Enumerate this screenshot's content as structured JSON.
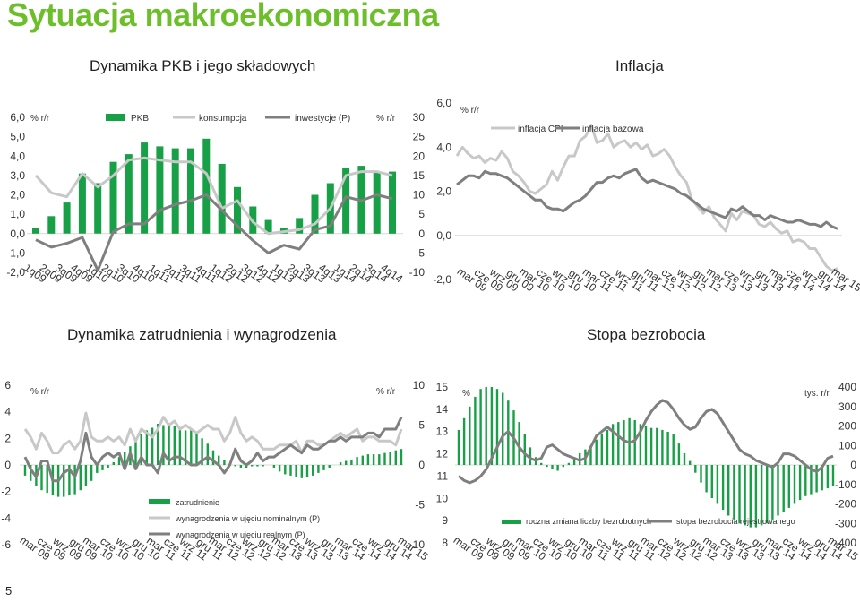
{
  "slide": {
    "title": "Sytuacja makroekonomiczna",
    "page_number": "5",
    "colors": {
      "accent": "#6cbf2a",
      "bar": "#17a046",
      "dark_line": "#7f7f7f",
      "light_line": "#c8c8c8"
    }
  },
  "sections": {
    "gdp": "Dynamika PKB i jego składowych",
    "inflation": "Inflacja",
    "employment": "Dynamika zatrudnienia i wynagrodzenia",
    "unemployment": "Stopa bezrobocia"
  },
  "chart_data": [
    {
      "id": "gdp",
      "type": "bar",
      "title": "Dynamika PKB i jego składowych",
      "left_unit": "% r/r",
      "right_unit": "% r/r",
      "left_ticks": [
        "6,0",
        "5,0",
        "4,0",
        "3,0",
        "2,0",
        "1,0",
        "0,0",
        "-1,0",
        "-2,0"
      ],
      "right_ticks": [
        "30",
        "25",
        "20",
        "15",
        "10",
        "5",
        "0",
        "-5",
        "-10"
      ],
      "ylim": [
        -2,
        6
      ],
      "y2lim": [
        -10,
        30
      ],
      "categories": [
        "1q09",
        "2q09",
        "3q09",
        "4q09",
        "1q10",
        "2q10",
        "3q10",
        "4q10",
        "1q11",
        "2q11",
        "3q11",
        "4q11",
        "1q12",
        "2q12",
        "3q12",
        "4q12",
        "1q13",
        "2q13",
        "3q13",
        "4q13",
        "1q14",
        "2q14",
        "3q14",
        "4q14"
      ],
      "series": [
        {
          "name": "PKB",
          "kind": "bar",
          "axis": "left",
          "color": "#17a046",
          "values": [
            0.3,
            0.9,
            1.6,
            3.1,
            2.6,
            3.7,
            4.1,
            4.7,
            4.5,
            4.4,
            4.4,
            4.9,
            3.6,
            2.4,
            1.4,
            0.7,
            0.3,
            0.8,
            2.0,
            2.6,
            3.4,
            3.5,
            3.2,
            3.2
          ]
        },
        {
          "name": "konsumpcja",
          "kind": "line",
          "axis": "left",
          "color": "#c8c8c8",
          "values": [
            3.0,
            2.1,
            1.9,
            3.1,
            2.4,
            3.0,
            3.8,
            3.9,
            3.8,
            3.7,
            3.7,
            3.1,
            1.3,
            1.7,
            0.6,
            0.0,
            0.1,
            0.2,
            0.5,
            1.3,
            3.0,
            3.2,
            3.2,
            3.0
          ]
        },
        {
          "name": "inwestycje (P)",
          "kind": "line",
          "axis": "right",
          "color": "#7f7f7f",
          "values": [
            -1.6,
            -3.5,
            -2.5,
            -1.0,
            -9.5,
            0.5,
            2.5,
            2.5,
            6.0,
            7.5,
            8.5,
            10.0,
            6.0,
            2.0,
            -1.8,
            -5.0,
            -3.0,
            -4.0,
            1.0,
            2.0,
            9.5,
            8.5,
            10.0,
            9.0
          ]
        }
      ]
    },
    {
      "id": "inflation",
      "type": "line",
      "title": "Inflacja",
      "unit": "% r/r",
      "left_ticks": [
        "6,0",
        "4,0",
        "2,0",
        "0,0",
        "-2,0"
      ],
      "ylim": [
        -2,
        6
      ],
      "tick_labels": [
        "mar 09",
        "cze 09",
        "wrz 09",
        "gru 09",
        "mar 10",
        "cze 10",
        "wrz 10",
        "gru 10",
        "mar 11",
        "cze 11",
        "wrz 11",
        "gru 11",
        "mar 12",
        "cze 12",
        "wrz 12",
        "gru 12",
        "mar 13",
        "cze 13",
        "wrz 13",
        "gru 13",
        "mar 14",
        "cze 14",
        "wrz 14",
        "gru 14",
        "mar 15"
      ],
      "series": [
        {
          "name": "inflacja CPI",
          "color": "#c8c8c8",
          "values": [
            3.6,
            4.0,
            3.7,
            3.5,
            3.6,
            3.3,
            3.5,
            3.4,
            3.8,
            3.5,
            2.9,
            2.7,
            2.4,
            2.0,
            1.9,
            2.1,
            2.3,
            2.9,
            2.5,
            3.1,
            3.6,
            3.6,
            4.3,
            4.5,
            5.0,
            4.2,
            4.3,
            4.6,
            4.0,
            4.2,
            4.3,
            4.0,
            4.2,
            3.9,
            4.1,
            3.6,
            3.7,
            3.9,
            3.6,
            3.1,
            2.7,
            2.4,
            1.6,
            1.3,
            1.0,
            1.3,
            0.8,
            0.5,
            0.2,
            1.0,
            0.7,
            1.1,
            1.0,
            0.9,
            0.5,
            0.4,
            0.6,
            0.3,
            0.1,
            0.2,
            -0.3,
            -0.2,
            -0.3,
            -0.6,
            -0.6,
            -1.0,
            -1.4,
            -1.6,
            -1.5
          ]
        },
        {
          "name": "inflacja bazowa",
          "color": "#7f7f7f",
          "values": [
            2.3,
            2.5,
            2.7,
            2.7,
            2.6,
            2.9,
            2.8,
            2.8,
            2.7,
            2.6,
            2.4,
            2.2,
            2.0,
            1.8,
            1.6,
            1.6,
            1.3,
            1.2,
            1.2,
            1.1,
            1.3,
            1.5,
            1.6,
            1.8,
            2.1,
            2.4,
            2.4,
            2.6,
            2.7,
            2.6,
            2.8,
            2.9,
            3.0,
            2.6,
            2.4,
            2.5,
            2.4,
            2.3,
            2.2,
            2.1,
            1.9,
            1.8,
            1.6,
            1.4,
            1.2,
            1.1,
            1.0,
            0.9,
            0.8,
            1.2,
            1.1,
            1.3,
            1.1,
            0.9,
            0.9,
            0.7,
            0.9,
            0.8,
            0.7,
            0.6,
            0.6,
            0.7,
            0.6,
            0.5,
            0.5,
            0.4,
            0.6,
            0.4,
            0.3
          ]
        }
      ]
    },
    {
      "id": "employment",
      "type": "bar",
      "title": "Dynamika zatrudnienia i wynagrodzenia",
      "left_unit": "% r/r",
      "right_unit": "% r/r",
      "left_ticks": [
        "6",
        "4",
        "2",
        "0",
        "-2",
        "-4",
        "-6"
      ],
      "right_ticks": [
        "10",
        "5",
        "0",
        "-5",
        "-10"
      ],
      "ylim": [
        -6,
        6
      ],
      "y2lim": [
        -10,
        10
      ],
      "tick_labels": [
        "mar 09",
        "cze 09",
        "wrz 09",
        "gru 09",
        "mar 10",
        "cze 10",
        "wrz 10",
        "gru 10",
        "mar 11",
        "cze 11",
        "wrz 11",
        "gru 11",
        "mar 12",
        "cze 12",
        "wrz 12",
        "gru 12",
        "mar 13",
        "cze 13",
        "wrz 13",
        "gru 13",
        "mar 14",
        "cze 14",
        "wrz 14",
        "gru 14",
        "mar 15"
      ],
      "legend": {
        "bar": "zatrudnienie",
        "nominal": "wynagrodzenia w ujęciu nominalnym (P)",
        "real": "wynagrodzenia w ujęciu realnym (P)"
      },
      "series": [
        {
          "name": "zatrudnienie",
          "kind": "bar",
          "axis": "left",
          "color": "#17a046",
          "values": [
            -0.8,
            -1.2,
            -1.6,
            -1.9,
            -2.1,
            -2.3,
            -2.4,
            -2.4,
            -2.3,
            -2.2,
            -1.9,
            -1.6,
            -1.2,
            -0.6,
            -0.4,
            -0.2,
            0.2,
            0.6,
            1.0,
            1.4,
            1.8,
            2.3,
            2.6,
            2.8,
            3.1,
            3.0,
            3.1,
            2.9,
            2.8,
            2.6,
            2.6,
            2.3,
            2.0,
            1.6,
            1.1,
            0.7,
            0.4,
            0.1,
            -0.1,
            -0.2,
            -0.2,
            -0.1,
            -0.1,
            -0.1,
            0.0,
            -0.2,
            -0.5,
            -0.7,
            -0.8,
            -0.9,
            -1.0,
            -0.9,
            -0.8,
            -0.6,
            -0.4,
            -0.2,
            0.0,
            0.2,
            0.3,
            0.4,
            0.6,
            0.7,
            0.8,
            0.8,
            0.8,
            0.9,
            1.0,
            1.1,
            1.2
          ]
        },
        {
          "name": "wynagrodzenia w ujęciu nominalnym (P)",
          "kind": "line",
          "axis": "right",
          "color": "#c8c8c8",
          "values": [
            4.5,
            3.5,
            2.0,
            4.0,
            3.0,
            1.5,
            1.5,
            2.5,
            3.0,
            2.0,
            3.0,
            6.5,
            3.5,
            3.0,
            3.0,
            3.5,
            3.0,
            3.5,
            2.5,
            4.5,
            3.0,
            4.5,
            4.0,
            3.5,
            4.5,
            6.0,
            5.0,
            5.5,
            4.5,
            5.0,
            4.5,
            4.0,
            4.5,
            5.0,
            4.5,
            4.5,
            3.0,
            4.0,
            6.0,
            4.0,
            3.0,
            3.5,
            3.0,
            2.0,
            2.0,
            2.0,
            2.5,
            2.5,
            2.5,
            3.0,
            1.5,
            3.0,
            3.0,
            2.5,
            2.5,
            3.0,
            3.5,
            4.0,
            3.5,
            4.0,
            4.5,
            3.0,
            3.5,
            3.5,
            3.0,
            3.0,
            3.0,
            2.5,
            4.5
          ]
        },
        {
          "name": "wynagrodzenia w ujęciu realnym (P)",
          "kind": "line",
          "axis": "right",
          "color": "#7f7f7f",
          "values": [
            1.0,
            -0.5,
            -1.5,
            0.5,
            0.5,
            -2.0,
            -2.0,
            -1.0,
            -0.5,
            -1.5,
            0.5,
            4.0,
            1.0,
            0.0,
            1.0,
            1.5,
            1.0,
            1.5,
            -0.5,
            1.5,
            -0.5,
            1.0,
            0.0,
            0.0,
            -1.0,
            1.5,
            0.5,
            1.0,
            1.0,
            0.5,
            0.0,
            0.0,
            0.5,
            1.0,
            0.5,
            0.0,
            -1.0,
            0.0,
            2.0,
            0.5,
            0.0,
            0.5,
            1.5,
            0.5,
            1.0,
            1.0,
            1.5,
            2.0,
            2.5,
            2.0,
            1.5,
            2.5,
            2.0,
            2.0,
            2.5,
            3.0,
            3.0,
            3.5,
            3.0,
            3.5,
            3.5,
            3.5,
            4.0,
            4.0,
            3.5,
            4.5,
            4.5,
            4.5,
            6.0
          ]
        }
      ]
    },
    {
      "id": "unemployment",
      "type": "bar",
      "title": "Stopa bezrobocia",
      "left_unit": "%",
      "right_unit": "tys. r/r",
      "left_ticks": [
        "15",
        "14",
        "13",
        "12",
        "11",
        "10",
        "9",
        "8"
      ],
      "right_ticks": [
        "400",
        "300",
        "200",
        "100",
        "0",
        "-100",
        "-200",
        "-300",
        "-400"
      ],
      "ylim": [
        8,
        15
      ],
      "y2lim": [
        -400,
        400
      ],
      "tick_labels": [
        "mar 09",
        "cze 09",
        "wrz 09",
        "gru 09",
        "mar 10",
        "cze 10",
        "wrz 10",
        "gru 10",
        "mar 11",
        "cze 11",
        "wrz 11",
        "gru 11",
        "mar 12",
        "cze 12",
        "wrz 12",
        "gru 12",
        "mar 13",
        "cze 13",
        "wrz 13",
        "gru 13",
        "mar 14",
        "cze 14",
        "wrz 14",
        "gru 14",
        "mar 15"
      ],
      "legend": {
        "bar": "roczna zmiana liczby bezrobotnych",
        "line": "stopa bezrobocia rejestrowanego"
      },
      "series": [
        {
          "name": "roczna zmiana liczby bezrobotnych",
          "kind": "bar",
          "axis": "right",
          "color": "#17a046",
          "values": [
            180,
            240,
            300,
            350,
            390,
            400,
            400,
            390,
            370,
            330,
            280,
            220,
            160,
            90,
            40,
            10,
            -10,
            -20,
            -30,
            -10,
            10,
            40,
            60,
            80,
            100,
            130,
            160,
            180,
            210,
            220,
            230,
            240,
            230,
            210,
            200,
            190,
            190,
            180,
            170,
            160,
            110,
            60,
            20,
            -40,
            -90,
            -140,
            -170,
            -200,
            -230,
            -260,
            -280,
            -300,
            -310,
            -320,
            -320,
            -310,
            -300,
            -280,
            -260,
            -240,
            -220,
            -200,
            -180,
            -160,
            -150,
            -140,
            -130,
            -120,
            -110
          ]
        },
        {
          "name": "stopa bezrobocia rejestrowanego",
          "kind": "line",
          "axis": "left",
          "color": "#7f7f7f",
          "values": [
            11.0,
            10.8,
            10.7,
            10.8,
            11.0,
            11.3,
            11.8,
            12.3,
            12.8,
            13.0,
            12.7,
            12.3,
            12.0,
            11.8,
            11.7,
            11.8,
            12.3,
            12.4,
            12.2,
            12.0,
            11.9,
            11.8,
            11.7,
            11.8,
            12.3,
            12.8,
            13.0,
            13.2,
            13.0,
            12.8,
            12.6,
            12.5,
            12.6,
            13.0,
            13.5,
            13.9,
            14.2,
            14.4,
            14.3,
            14.0,
            13.6,
            13.3,
            13.1,
            13.2,
            13.6,
            13.9,
            14.0,
            13.8,
            13.4,
            13.0,
            12.6,
            12.2,
            12.0,
            11.9,
            11.7,
            11.6,
            11.5,
            11.4,
            11.6,
            12.0,
            12.0,
            11.9,
            11.7,
            11.5,
            11.3,
            11.2,
            11.4,
            11.8,
            11.9
          ]
        }
      ]
    }
  ]
}
